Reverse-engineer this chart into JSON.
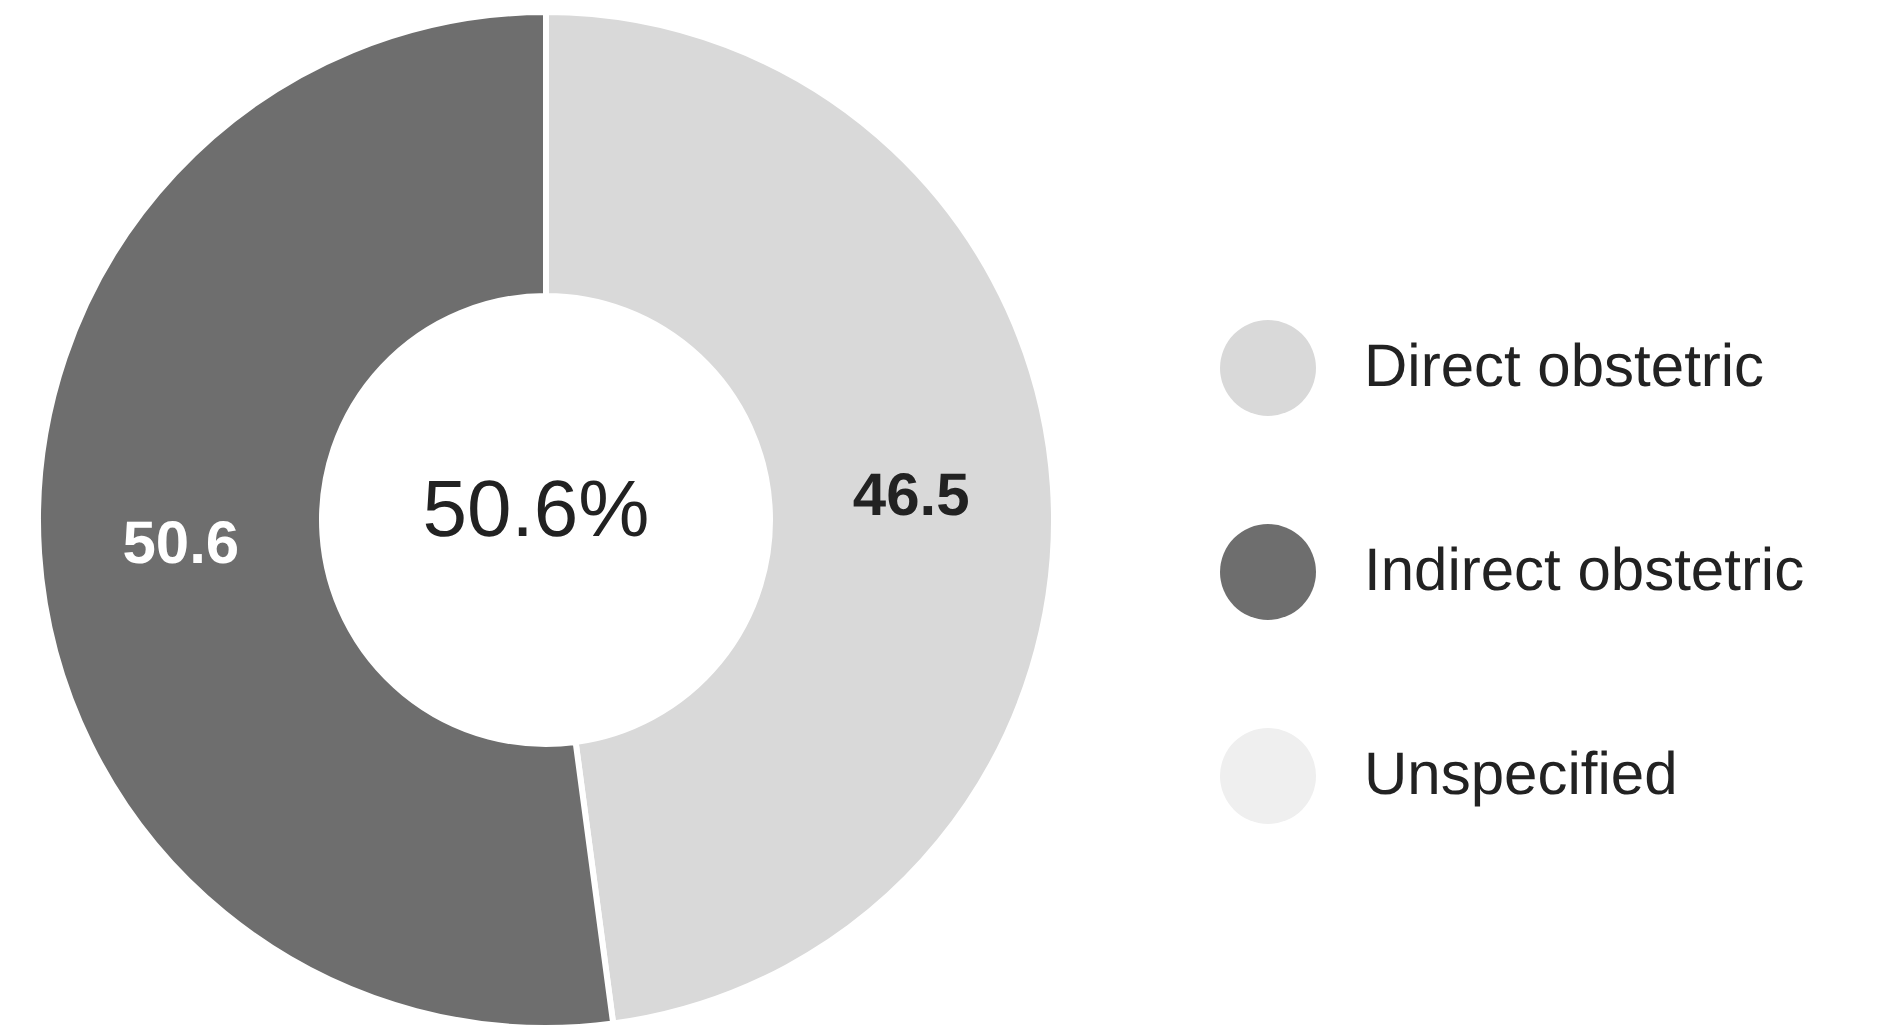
{
  "chart_data": {
    "type": "donut",
    "categories": [
      "Direct obstetric",
      "Indirect obstetric",
      "Unspecified"
    ],
    "values": [
      46.5,
      50.6,
      null
    ],
    "colors": [
      "#d9d9d9",
      "#6e6e6e",
      "#efefef"
    ],
    "data_labels": true,
    "legend": "right",
    "annotations": [
      "50.6%"
    ]
  }
}
